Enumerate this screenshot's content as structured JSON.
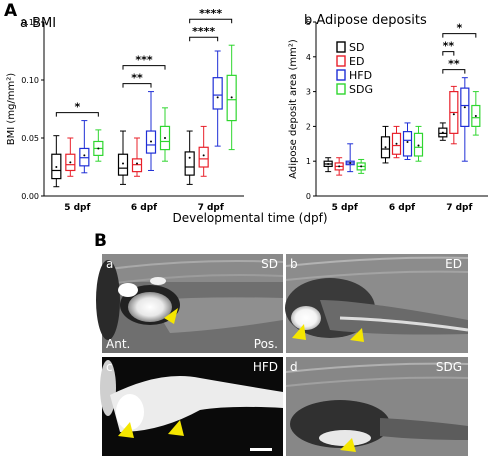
{
  "figure": {
    "panel_A_label": "A",
    "panel_B_label": "B",
    "xlabel": "Developmental time (dpf)"
  },
  "colors": {
    "SD": "#000000",
    "ED": "#e8202a",
    "HFD": "#1f2fd6",
    "SDG": "#2fd62f"
  },
  "legend": [
    "SD",
    "ED",
    "HFD",
    "SDG"
  ],
  "chart_data": [
    {
      "type": "box",
      "panel": "a",
      "title": "BMI",
      "ylabel": "BMI (mg/mm²)",
      "ylim": [
        0,
        0.15
      ],
      "yticks": [
        "0.00",
        "0.05",
        "0.10",
        "0.15"
      ],
      "categories": [
        "5 dpf",
        "6 dpf",
        "7 dpf"
      ],
      "series": [
        {
          "name": "SD",
          "boxes": [
            {
              "min": 0.008,
              "q1": 0.015,
              "median": 0.022,
              "q3": 0.036,
              "max": 0.052,
              "mean": 0.025
            },
            {
              "min": 0.01,
              "q1": 0.018,
              "median": 0.024,
              "q3": 0.036,
              "max": 0.056,
              "mean": 0.028
            },
            {
              "min": 0.01,
              "q1": 0.018,
              "median": 0.025,
              "q3": 0.038,
              "max": 0.056,
              "mean": 0.033
            }
          ]
        },
        {
          "name": "ED",
          "boxes": [
            {
              "min": 0.017,
              "q1": 0.022,
              "median": 0.027,
              "q3": 0.036,
              "max": 0.05,
              "mean": 0.029
            },
            {
              "min": 0.017,
              "q1": 0.021,
              "median": 0.027,
              "q3": 0.032,
              "max": 0.05,
              "mean": 0.028
            },
            {
              "min": 0.017,
              "q1": 0.025,
              "median": 0.032,
              "q3": 0.042,
              "max": 0.06,
              "mean": 0.035
            }
          ]
        },
        {
          "name": "HFD",
          "boxes": [
            {
              "min": 0.02,
              "q1": 0.026,
              "median": 0.033,
              "q3": 0.041,
              "max": 0.065,
              "mean": 0.035
            },
            {
              "min": 0.022,
              "q1": 0.037,
              "median": 0.044,
              "q3": 0.056,
              "max": 0.09,
              "mean": 0.047
            },
            {
              "min": 0.043,
              "q1": 0.075,
              "median": 0.087,
              "q3": 0.102,
              "max": 0.125,
              "mean": 0.085
            }
          ]
        },
        {
          "name": "SDG",
          "boxes": [
            {
              "min": 0.03,
              "q1": 0.035,
              "median": 0.041,
              "q3": 0.047,
              "max": 0.057,
              "mean": 0.041
            },
            {
              "min": 0.03,
              "q1": 0.04,
              "median": 0.047,
              "q3": 0.06,
              "max": 0.076,
              "mean": 0.05
            },
            {
              "min": 0.04,
              "q1": 0.065,
              "median": 0.083,
              "q3": 0.104,
              "max": 0.13,
              "mean": 0.085
            }
          ]
        }
      ],
      "significance": [
        {
          "group": 0,
          "from": "SD",
          "to": "SDG",
          "label": "*"
        },
        {
          "group": 1,
          "from": "SD",
          "to": "HFD",
          "label": "**"
        },
        {
          "group": 1,
          "from": "SD",
          "to": "SDG",
          "label": "***"
        },
        {
          "group": 2,
          "from": "SD",
          "to": "HFD",
          "label": "****"
        },
        {
          "group": 2,
          "from": "SD",
          "to": "SDG",
          "label": "****"
        }
      ]
    },
    {
      "type": "box",
      "panel": "b",
      "title": "Adipose deposits",
      "ylabel": "Adipose deposit area (mm²)",
      "ylim": [
        0,
        5
      ],
      "yticks": [
        "0",
        "1",
        "2",
        "3",
        "4",
        "5"
      ],
      "categories": [
        "5 dpf",
        "6 dpf",
        "7 dpf"
      ],
      "series": [
        {
          "name": "SD",
          "boxes": [
            {
              "min": 0.7,
              "q1": 0.85,
              "median": 0.92,
              "q3": 1.0,
              "max": 1.1,
              "mean": 0.92
            },
            {
              "min": 0.95,
              "q1": 1.1,
              "median": 1.35,
              "q3": 1.7,
              "max": 2.0,
              "mean": 1.4
            },
            {
              "min": 1.6,
              "q1": 1.7,
              "median": 1.8,
              "q3": 1.95,
              "max": 2.1,
              "mean": 1.82
            }
          ]
        },
        {
          "name": "ED",
          "boxes": [
            {
              "min": 0.6,
              "q1": 0.75,
              "median": 0.85,
              "q3": 0.95,
              "max": 1.1,
              "mean": 0.85
            },
            {
              "min": 1.1,
              "q1": 1.2,
              "median": 1.45,
              "q3": 1.8,
              "max": 2.0,
              "mean": 1.5
            },
            {
              "min": 1.5,
              "q1": 1.8,
              "median": 2.4,
              "q3": 3.0,
              "max": 3.15,
              "mean": 2.35
            }
          ]
        },
        {
          "name": "HFD",
          "boxes": [
            {
              "min": 0.7,
              "q1": 0.9,
              "median": 0.95,
              "q3": 1.0,
              "max": 1.5,
              "mean": 0.95
            },
            {
              "min": 1.05,
              "q1": 1.15,
              "median": 1.6,
              "q3": 1.85,
              "max": 2.1,
              "mean": 1.55
            },
            {
              "min": 1.0,
              "q1": 2.0,
              "median": 2.6,
              "q3": 3.1,
              "max": 3.4,
              "mean": 2.55
            }
          ]
        },
        {
          "name": "SDG",
          "boxes": [
            {
              "min": 0.65,
              "q1": 0.75,
              "median": 0.85,
              "q3": 0.95,
              "max": 1.05,
              "mean": 0.85
            },
            {
              "min": 1.0,
              "q1": 1.15,
              "median": 1.4,
              "q3": 1.8,
              "max": 2.0,
              "mean": 1.45
            },
            {
              "min": 1.75,
              "q1": 2.0,
              "median": 2.25,
              "q3": 2.6,
              "max": 3.0,
              "mean": 2.3
            }
          ]
        }
      ],
      "significance": [
        {
          "group": 2,
          "from": "SD",
          "to": "HFD",
          "label": "**"
        },
        {
          "group": 2,
          "from": "SD",
          "to": "ED",
          "label": "**"
        },
        {
          "group": 2,
          "from": "SD",
          "to": "SDG",
          "label": "*"
        }
      ]
    }
  ],
  "images": [
    {
      "letter": "a",
      "tag": "SD",
      "ant": "Ant.",
      "pos": "Pos."
    },
    {
      "letter": "b",
      "tag": "ED"
    },
    {
      "letter": "c",
      "tag": "HFD"
    },
    {
      "letter": "d",
      "tag": "SDG"
    }
  ]
}
